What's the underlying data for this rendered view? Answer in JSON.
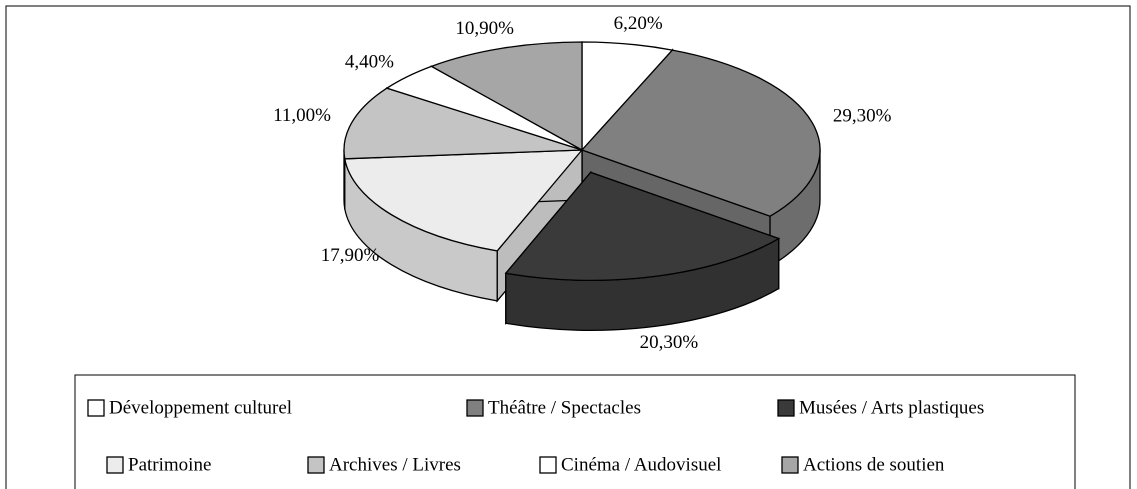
{
  "chart_data": {
    "type": "pie",
    "categories": [
      "Développement culturel",
      "Théâtre / Spectacles",
      "Musées / Arts plastiques",
      "Patrimoine",
      "Archives / Livres",
      "Cinéma / Audovisuel",
      "Actions de soutien"
    ],
    "values": [
      6.2,
      29.3,
      20.3,
      17.9,
      11.0,
      4.4,
      10.9
    ],
    "value_labels": [
      "6,20%",
      "29,30%",
      "20,30%",
      "17,90%",
      "11,00%",
      "4,40%",
      "10,90%"
    ],
    "colors": [
      "#ffffff",
      "#808080",
      "#3a3a3a",
      "#ececec",
      "#c4c4c4",
      "#ffffff",
      "#a6a6a6"
    ],
    "exploded": [
      2
    ],
    "legend": "bottom"
  }
}
